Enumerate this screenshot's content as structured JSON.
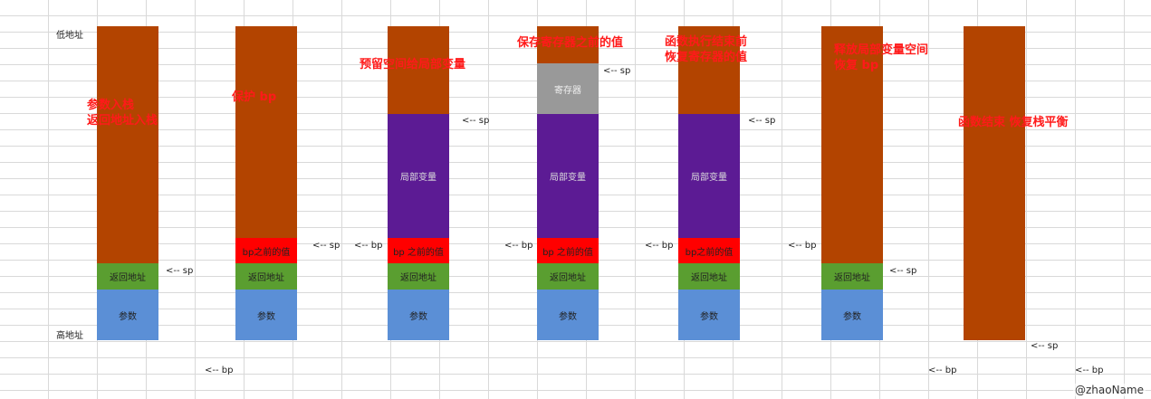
{
  "colors": {
    "stack": "#b34400",
    "param": "#5b8fd6",
    "ret": "#5a9e30",
    "bp": "#ff0000",
    "local": "#5c1b94",
    "reg": "#999999",
    "annotation": "#ff1a1a"
  },
  "addr": {
    "low": "低地址",
    "high": "高地址"
  },
  "labels": {
    "param": "参数",
    "ret": "返回地址",
    "bp_prev": "bp之前的值",
    "bp_prev_alt": "bp 之前的值",
    "local": "局部变量",
    "reg": "寄存器"
  },
  "pointers": {
    "sp": "<-- sp",
    "bp": "<-- bp"
  },
  "annotations": {
    "step1_line1": "参数入栈",
    "step1_line2": "返回地址入栈",
    "step2": "保护  bp",
    "step3": "预留空间给局部变量",
    "step4": "保存寄存器之前的值",
    "step5_line1": "函数执行结束前",
    "step5_line2": "恢复寄存器的值",
    "step6_line1": "释放局部变量空间",
    "step6_line2": "恢复 bp",
    "step7": "函数结束  恢复栈平衡"
  },
  "watermark": "@zhaoName"
}
